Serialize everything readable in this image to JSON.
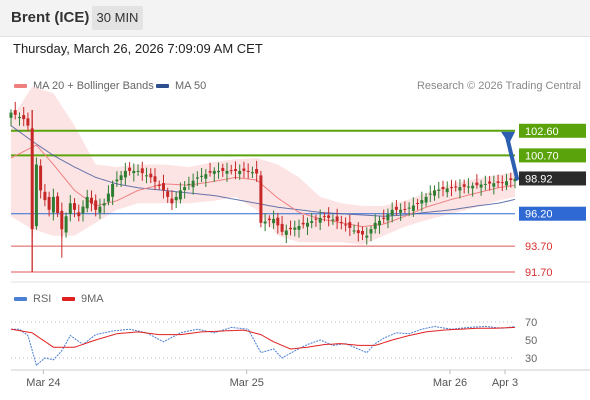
{
  "header": {
    "instrument": "Brent (ICE)",
    "timeframe": "30 MIN"
  },
  "timestamp": "Thursday, March 26, 2026 7:09:09 AM CET",
  "legend": {
    "ma20": "MA 20 + Bollinger Bands",
    "ma50": "MA 50",
    "credit": "Research © 2026 Trading Central",
    "rsi": "RSI",
    "rsi9": "9MA"
  },
  "colors": {
    "candle_up": "#2e7d32",
    "candle_down": "#c62828",
    "ma20": "#f08080",
    "bollinger_fill": "#fde1e1",
    "ma50": "#4a5fa0",
    "resistance": "#5aa30a",
    "pivot": "#2f6ad4",
    "support": "#d93030",
    "rsi_line": "#4a7fd4",
    "rsi_ma": "#e02020"
  },
  "chart_data": [
    {
      "type": "candlestick",
      "title": "Brent (ICE) 30 MIN",
      "x_labels": [
        "Mar 24",
        "Mar 25",
        "Mar 26",
        "Apr 3"
      ],
      "y_range": [
        90.6,
        106.4
      ],
      "last_price": 98.92,
      "levels": [
        {
          "value": 102.6,
          "label": "102.60",
          "kind": "resistance",
          "style": "box"
        },
        {
          "value": 100.7,
          "label": "100.70",
          "kind": "resistance",
          "style": "box"
        },
        {
          "value": 96.2,
          "label": "96.20",
          "kind": "pivot",
          "style": "box"
        },
        {
          "value": 93.7,
          "label": "93.70",
          "kind": "support",
          "style": "text"
        },
        {
          "value": 91.7,
          "label": "91.70",
          "kind": "support",
          "style": "text"
        }
      ],
      "price_path": [
        [
          0,
          104.0
        ],
        [
          3,
          103.5
        ],
        [
          4,
          103.0
        ],
        [
          5,
          95.0
        ],
        [
          6,
          100.0
        ],
        [
          7,
          98.0
        ],
        [
          9,
          96.5
        ],
        [
          10,
          97.5
        ],
        [
          12,
          95.0
        ],
        [
          14,
          97.0
        ],
        [
          16,
          96.0
        ],
        [
          18,
          97.5
        ],
        [
          20,
          96.5
        ],
        [
          22,
          97.0
        ],
        [
          24,
          98.5
        ],
        [
          27,
          99.5
        ],
        [
          30,
          99.5
        ],
        [
          33,
          99.0
        ],
        [
          36,
          98.0
        ],
        [
          38,
          97.0
        ],
        [
          40,
          98.0
        ],
        [
          44,
          99.0
        ],
        [
          48,
          99.5
        ],
        [
          52,
          99.5
        ],
        [
          56,
          99.5
        ],
        [
          58,
          99.3
        ],
        [
          59,
          95.5
        ],
        [
          62,
          95.8
        ],
        [
          64,
          94.8
        ],
        [
          66,
          95.0
        ],
        [
          70,
          95.5
        ],
        [
          74,
          96.0
        ],
        [
          78,
          95.5
        ],
        [
          82,
          94.7
        ],
        [
          84,
          94.5
        ],
        [
          86,
          95.5
        ],
        [
          88,
          95.8
        ],
        [
          90,
          96.5
        ],
        [
          93,
          96.5
        ],
        [
          96,
          97.0
        ],
        [
          98,
          97.5
        ],
        [
          100,
          98.0
        ],
        [
          104,
          98.2
        ],
        [
          108,
          98.3
        ],
        [
          112,
          98.5
        ],
        [
          116,
          98.6
        ],
        [
          119,
          98.9
        ]
      ],
      "ma20_path": [
        [
          0,
          100.5
        ],
        [
          6,
          101.5
        ],
        [
          10,
          100.0
        ],
        [
          15,
          98.0
        ],
        [
          20,
          96.8
        ],
        [
          25,
          97.2
        ],
        [
          30,
          98.0
        ],
        [
          36,
          98.5
        ],
        [
          42,
          98.4
        ],
        [
          48,
          98.7
        ],
        [
          53,
          99.0
        ],
        [
          58,
          98.8
        ],
        [
          63,
          97.4
        ],
        [
          68,
          96.3
        ],
        [
          73,
          95.8
        ],
        [
          78,
          95.5
        ],
        [
          83,
          95.2
        ],
        [
          88,
          95.4
        ],
        [
          93,
          96.0
        ],
        [
          98,
          96.7
        ],
        [
          104,
          97.3
        ],
        [
          110,
          97.8
        ],
        [
          115,
          98.2
        ],
        [
          119,
          98.4
        ]
      ],
      "bollinger_upper": [
        [
          0,
          103.5
        ],
        [
          5,
          106.0
        ],
        [
          10,
          105.5
        ],
        [
          15,
          103.0
        ],
        [
          20,
          100.0
        ],
        [
          25,
          99.8
        ],
        [
          30,
          100.0
        ],
        [
          36,
          100.0
        ],
        [
          42,
          99.8
        ],
        [
          48,
          100.2
        ],
        [
          53,
          100.4
        ],
        [
          58,
          100.5
        ],
        [
          63,
          100.0
        ],
        [
          68,
          99.0
        ],
        [
          73,
          97.5
        ],
        [
          78,
          97.0
        ],
        [
          83,
          96.8
        ],
        [
          88,
          96.8
        ],
        [
          93,
          97.2
        ],
        [
          98,
          97.8
        ],
        [
          104,
          98.5
        ],
        [
          110,
          98.9
        ],
        [
          115,
          99.2
        ],
        [
          119,
          99.4
        ]
      ],
      "bollinger_lower": [
        [
          0,
          96.0
        ],
        [
          5,
          95.0
        ],
        [
          10,
          94.5
        ],
        [
          15,
          94.5
        ],
        [
          20,
          95.5
        ],
        [
          25,
          96.5
        ],
        [
          30,
          97.0
        ],
        [
          36,
          97.0
        ],
        [
          42,
          97.0
        ],
        [
          48,
          97.2
        ],
        [
          53,
          97.5
        ],
        [
          58,
          96.5
        ],
        [
          63,
          94.5
        ],
        [
          68,
          94.0
        ],
        [
          73,
          94.0
        ],
        [
          78,
          94.0
        ],
        [
          83,
          93.8
        ],
        [
          88,
          94.5
        ],
        [
          93,
          95.2
        ],
        [
          98,
          95.7
        ],
        [
          104,
          96.2
        ],
        [
          110,
          96.7
        ],
        [
          115,
          97.2
        ],
        [
          119,
          97.5
        ]
      ],
      "ma50_path": [
        [
          0,
          103.0
        ],
        [
          5,
          101.8
        ],
        [
          10,
          100.7
        ],
        [
          15,
          99.8
        ],
        [
          20,
          99.0
        ],
        [
          25,
          98.5
        ],
        [
          30,
          98.2
        ],
        [
          36,
          98.0
        ],
        [
          42,
          97.8
        ],
        [
          48,
          97.6
        ],
        [
          53,
          97.3
        ],
        [
          58,
          97.0
        ],
        [
          63,
          96.7
        ],
        [
          68,
          96.5
        ],
        [
          73,
          96.3
        ],
        [
          78,
          96.2
        ],
        [
          83,
          96.1
        ],
        [
          88,
          96.0
        ],
        [
          93,
          96.1
        ],
        [
          98,
          96.3
        ],
        [
          104,
          96.5
        ],
        [
          110,
          96.8
        ],
        [
          115,
          97.0
        ],
        [
          119,
          97.3
        ]
      ],
      "forecast_arrow": {
        "from_price": 98.92,
        "to_price": 102.6
      }
    },
    {
      "type": "line",
      "title": "RSI",
      "y_ticks": [
        30,
        50,
        70
      ],
      "y_range": [
        15,
        80
      ],
      "series": [
        {
          "name": "RSI",
          "values": [
            [
              0,
              62
            ],
            [
              2,
              62
            ],
            [
              4,
              55
            ],
            [
              6,
              22
            ],
            [
              8,
              30
            ],
            [
              10,
              28
            ],
            [
              12,
              38
            ],
            [
              14,
              55
            ],
            [
              17,
              45
            ],
            [
              20,
              56
            ],
            [
              24,
              60
            ],
            [
              28,
              62
            ],
            [
              32,
              58
            ],
            [
              36,
              48
            ],
            [
              40,
              58
            ],
            [
              44,
              62
            ],
            [
              48,
              58
            ],
            [
              52,
              64
            ],
            [
              56,
              62
            ],
            [
              59,
              36
            ],
            [
              62,
              40
            ],
            [
              64,
              30
            ],
            [
              67,
              38
            ],
            [
              70,
              45
            ],
            [
              73,
              50
            ],
            [
              76,
              44
            ],
            [
              79,
              46
            ],
            [
              82,
              40
            ],
            [
              84,
              36
            ],
            [
              86,
              46
            ],
            [
              88,
              52
            ],
            [
              91,
              58
            ],
            [
              94,
              57
            ],
            [
              97,
              62
            ],
            [
              100,
              65
            ],
            [
              104,
              62
            ],
            [
              108,
              64
            ],
            [
              112,
              65
            ],
            [
              116,
              63
            ],
            [
              119,
              65
            ]
          ]
        },
        {
          "name": "9MA",
          "values": [
            [
              0,
              62
            ],
            [
              5,
              58
            ],
            [
              10,
              42
            ],
            [
              15,
              42
            ],
            [
              20,
              50
            ],
            [
              25,
              57
            ],
            [
              30,
              59
            ],
            [
              35,
              56
            ],
            [
              40,
              56
            ],
            [
              45,
              59
            ],
            [
              50,
              60
            ],
            [
              55,
              61
            ],
            [
              59,
              56
            ],
            [
              62,
              48
            ],
            [
              66,
              40
            ],
            [
              70,
              42
            ],
            [
              74,
              45
            ],
            [
              78,
              46
            ],
            [
              82,
              44
            ],
            [
              86,
              44
            ],
            [
              90,
              50
            ],
            [
              94,
              55
            ],
            [
              98,
              59
            ],
            [
              102,
              61
            ],
            [
              106,
              62
            ],
            [
              110,
              63
            ],
            [
              114,
              63
            ],
            [
              119,
              64
            ]
          ]
        }
      ]
    }
  ]
}
